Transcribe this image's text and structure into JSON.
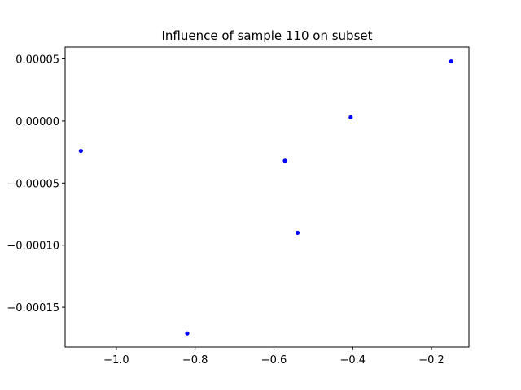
{
  "chart_data": {
    "type": "scatter",
    "title": "Influence of sample 110 on subset",
    "xlabel": "",
    "ylabel": "",
    "xlim": [
      -1.13,
      -0.105
    ],
    "ylim": [
      -0.000182,
      5.95e-05
    ],
    "x_ticks": [
      {
        "value": -1.0,
        "label": "−1.0"
      },
      {
        "value": -0.8,
        "label": "−0.8"
      },
      {
        "value": -0.6,
        "label": "−0.6"
      },
      {
        "value": -0.4,
        "label": "−0.4"
      },
      {
        "value": -0.2,
        "label": "−0.2"
      }
    ],
    "y_ticks": [
      {
        "value": 5e-05,
        "label": "0.00005"
      },
      {
        "value": 0.0,
        "label": "0.00000"
      },
      {
        "value": -5e-05,
        "label": "−0.00005"
      },
      {
        "value": -0.0001,
        "label": "−0.00010"
      },
      {
        "value": -0.00015,
        "label": "−0.00015"
      }
    ],
    "grid": false,
    "marker_color": "#0000ff",
    "series": [
      {
        "points": [
          {
            "x": -1.09,
            "y": -2.4e-05
          },
          {
            "x": -0.82,
            "y": -0.000171
          },
          {
            "x": -0.572,
            "y": -3.2e-05
          },
          {
            "x": -0.54,
            "y": -9e-05
          },
          {
            "x": -0.405,
            "y": 3e-06
          },
          {
            "x": -0.15,
            "y": 4.8e-05
          }
        ]
      }
    ]
  }
}
